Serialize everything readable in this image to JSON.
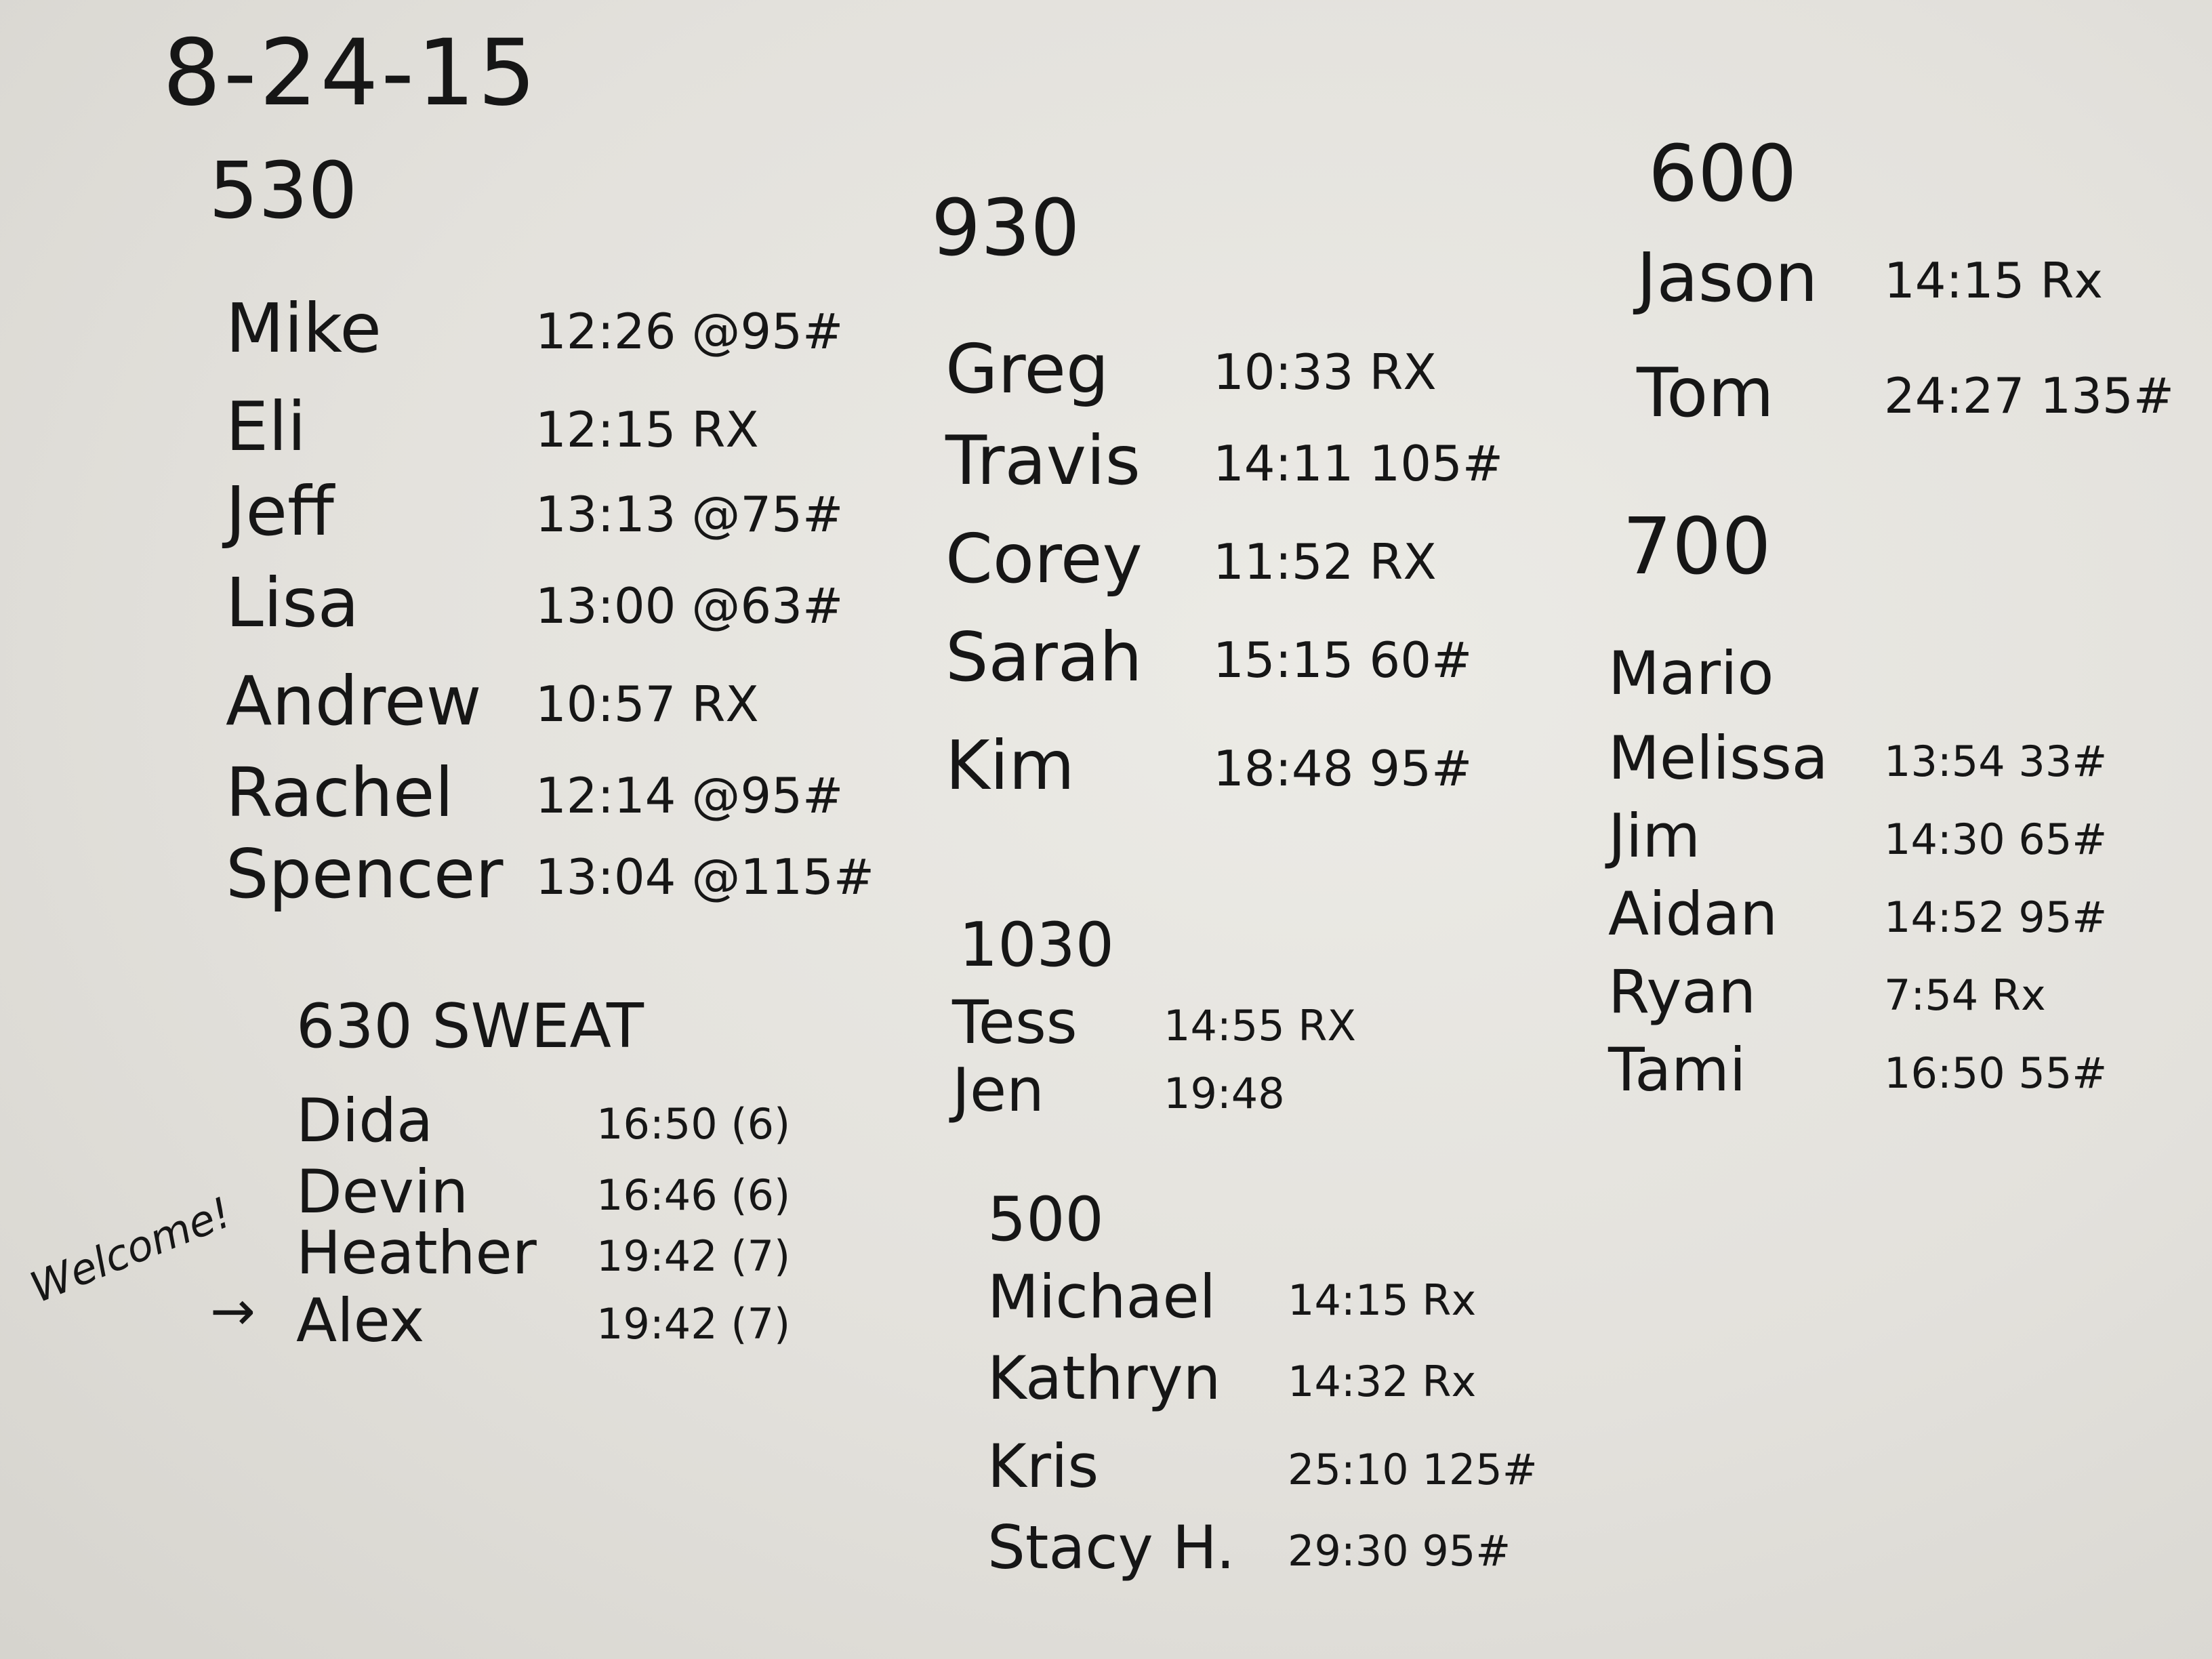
{
  "date": "8-24-15",
  "sections": [
    {
      "heading": "530",
      "entries": [
        {
          "name": "Mike",
          "result": "12:26 @95#"
        },
        {
          "name": "Eli",
          "result": "12:15 RX"
        },
        {
          "name": "Jeff",
          "result": "13:13 @75#"
        },
        {
          "name": "Lisa",
          "result": "13:00 @63#"
        },
        {
          "name": "Andrew",
          "result": "10:57 RX"
        },
        {
          "name": "Rachel",
          "result": "12:14 @95#"
        },
        {
          "name": "Spencer",
          "result": "13:04 @115#"
        }
      ]
    },
    {
      "heading": "630 SWEAT",
      "entries": [
        {
          "name": "Dida",
          "result": "16:50 (6)"
        },
        {
          "name": "Devin",
          "result": "16:46 (6)"
        },
        {
          "name": "Heather",
          "result": "19:42 (7)"
        },
        {
          "name": "Alex",
          "result": "19:42 (7)"
        }
      ]
    },
    {
      "heading": "930",
      "entries": [
        {
          "name": "Greg",
          "result": "10:33 RX"
        },
        {
          "name": "Travis",
          "result": "14:11 105#"
        },
        {
          "name": "Corey",
          "result": "11:52 RX"
        },
        {
          "name": "Sarah",
          "result": "15:15 60#"
        },
        {
          "name": "Kim",
          "result": "18:48 95#"
        }
      ]
    },
    {
      "heading": "1030",
      "entries": [
        {
          "name": "Tess",
          "result": "14:55 RX"
        },
        {
          "name": "Jen",
          "result": "19:48"
        }
      ]
    },
    {
      "heading": "500",
      "entries": [
        {
          "name": "Michael",
          "result": "14:15 Rx"
        },
        {
          "name": "Kathryn",
          "result": "14:32 Rx"
        },
        {
          "name": "Kris",
          "result": "25:10 125#"
        },
        {
          "name": "Stacy H.",
          "result": "29:30 95#"
        }
      ]
    },
    {
      "heading": "600",
      "entries": [
        {
          "name": "Jason",
          "result": "14:15 Rx"
        },
        {
          "name": "Tom",
          "result": "24:27 135#"
        }
      ]
    },
    {
      "heading": "700",
      "entries": [
        {
          "name": "Mario",
          "result": ""
        },
        {
          "name": "Melissa",
          "result": "13:54 33#"
        },
        {
          "name": "Jim",
          "result": "14:30 65#"
        },
        {
          "name": "Aidan",
          "result": "14:52 95#"
        },
        {
          "name": "Ryan",
          "result": "7:54 Rx"
        },
        {
          "name": "Tami",
          "result": "16:50 55#"
        }
      ]
    }
  ],
  "annotation": {
    "text": "Welcome!",
    "arrow": "→"
  }
}
